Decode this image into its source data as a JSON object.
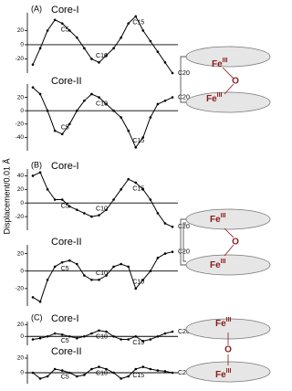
{
  "y_axis_label": "Displacement/0.01 Å",
  "diagrams": [
    {
      "metal": "Fe",
      "oxidation": "III",
      "bridge": "O"
    },
    {
      "metal": "Fe",
      "oxidation": "III",
      "bridge": "O"
    },
    {
      "metal": "Fe",
      "oxidation": "III",
      "bridge": "O"
    }
  ],
  "chart_data": [
    {
      "type": "line",
      "panel": "(A)",
      "title": "Core-I",
      "color": "#000000",
      "x": [
        1,
        2,
        3,
        4,
        5,
        6,
        7,
        8,
        9,
        10,
        11,
        12,
        13,
        14,
        15,
        16,
        17,
        18,
        19,
        20
      ],
      "values": [
        -28,
        -5,
        20,
        35,
        30,
        20,
        10,
        -5,
        -20,
        -25,
        -15,
        -5,
        10,
        30,
        40,
        20,
        5,
        -10,
        -25,
        -40
      ],
      "ylim": [
        -40,
        45
      ],
      "yticks": [
        -20,
        0,
        20
      ],
      "annotations": [
        {
          "text": "C5",
          "x": 5
        },
        {
          "text": "C10",
          "x": 10
        },
        {
          "text": "C15",
          "x": 15
        },
        {
          "text": "C20",
          "x": 20
        }
      ]
    },
    {
      "type": "line",
      "title": "Core-II",
      "color": "#000000",
      "x": [
        1,
        2,
        3,
        4,
        5,
        6,
        7,
        8,
        9,
        10,
        11,
        12,
        13,
        14,
        15,
        16,
        17,
        18,
        19,
        20
      ],
      "values": [
        35,
        25,
        0,
        -30,
        -35,
        -20,
        0,
        15,
        25,
        20,
        10,
        0,
        -10,
        -30,
        -55,
        -40,
        -10,
        10,
        15,
        20
      ],
      "ylim": [
        -60,
        40
      ],
      "yticks": [
        -40,
        -20,
        0,
        20
      ],
      "annotations": [
        {
          "text": "C5",
          "x": 5
        },
        {
          "text": "C10",
          "x": 10
        },
        {
          "text": "C15",
          "x": 15
        },
        {
          "text": "C20",
          "x": 20
        }
      ]
    },
    {
      "type": "line",
      "panel": "(B)",
      "title": "Core-I",
      "color": "#000000",
      "x": [
        1,
        2,
        3,
        4,
        5,
        6,
        7,
        8,
        9,
        10,
        11,
        12,
        13,
        14,
        15,
        16,
        17,
        18,
        19,
        20
      ],
      "values": [
        40,
        45,
        20,
        5,
        5,
        -5,
        -10,
        -15,
        -20,
        -18,
        -10,
        5,
        20,
        35,
        30,
        20,
        5,
        -15,
        -30,
        -35
      ],
      "ylim": [
        -40,
        50
      ],
      "yticks": [
        -20,
        0,
        20,
        40
      ],
      "annotations": [
        {
          "text": "C5",
          "x": 5
        },
        {
          "text": "C10",
          "x": 10
        },
        {
          "text": "C15",
          "x": 15
        },
        {
          "text": "C20",
          "x": 20
        }
      ]
    },
    {
      "type": "line",
      "title": "Core-II",
      "color": "#000000",
      "x": [
        1,
        2,
        3,
        4,
        5,
        6,
        7,
        8,
        9,
        10,
        11,
        12,
        13,
        14,
        15,
        16,
        17,
        18,
        19,
        20
      ],
      "values": [
        -30,
        -35,
        -10,
        5,
        10,
        12,
        8,
        -5,
        -10,
        -10,
        -5,
        5,
        8,
        5,
        -20,
        -10,
        0,
        15,
        20,
        22
      ],
      "ylim": [
        -40,
        30
      ],
      "yticks": [
        -20,
        0,
        20
      ],
      "annotations": [
        {
          "text": "C5",
          "x": 5
        },
        {
          "text": "C10",
          "x": 10
        },
        {
          "text": "C15",
          "x": 15
        },
        {
          "text": "C20",
          "x": 20
        }
      ]
    },
    {
      "type": "line",
      "panel": "(C)",
      "title": "Core-I",
      "color": "#000000",
      "x": [
        1,
        2,
        3,
        4,
        5,
        6,
        7,
        8,
        9,
        10,
        11,
        12,
        13,
        14,
        15,
        16,
        17,
        18,
        19,
        20
      ],
      "values": [
        -5,
        -3,
        0,
        5,
        3,
        0,
        -3,
        0,
        5,
        10,
        8,
        0,
        -5,
        -5,
        0,
        -8,
        -5,
        0,
        5,
        8
      ],
      "ylim": [
        -15,
        25
      ],
      "yticks": [
        0,
        20
      ],
      "annotations": [
        {
          "text": "C5",
          "x": 5
        },
        {
          "text": "C10",
          "x": 10
        },
        {
          "text": "C15",
          "x": 15
        },
        {
          "text": "C20",
          "x": 20
        }
      ]
    },
    {
      "type": "line",
      "title": "Core-II",
      "color": "#000000",
      "x": [
        1,
        2,
        3,
        4,
        5,
        6,
        7,
        8,
        9,
        10,
        11,
        12,
        13,
        14,
        15,
        16,
        17,
        18,
        19,
        20
      ],
      "values": [
        0,
        -8,
        -5,
        5,
        3,
        0,
        -5,
        -3,
        5,
        8,
        5,
        0,
        -8,
        -5,
        5,
        8,
        5,
        3,
        2,
        0
      ],
      "ylim": [
        -15,
        25
      ],
      "yticks": [
        0,
        20
      ],
      "annotations": [
        {
          "text": "C5",
          "x": 5
        },
        {
          "text": "C10",
          "x": 10
        },
        {
          "text": "C15",
          "x": 15
        },
        {
          "text": "C20",
          "x": 20
        }
      ]
    }
  ]
}
